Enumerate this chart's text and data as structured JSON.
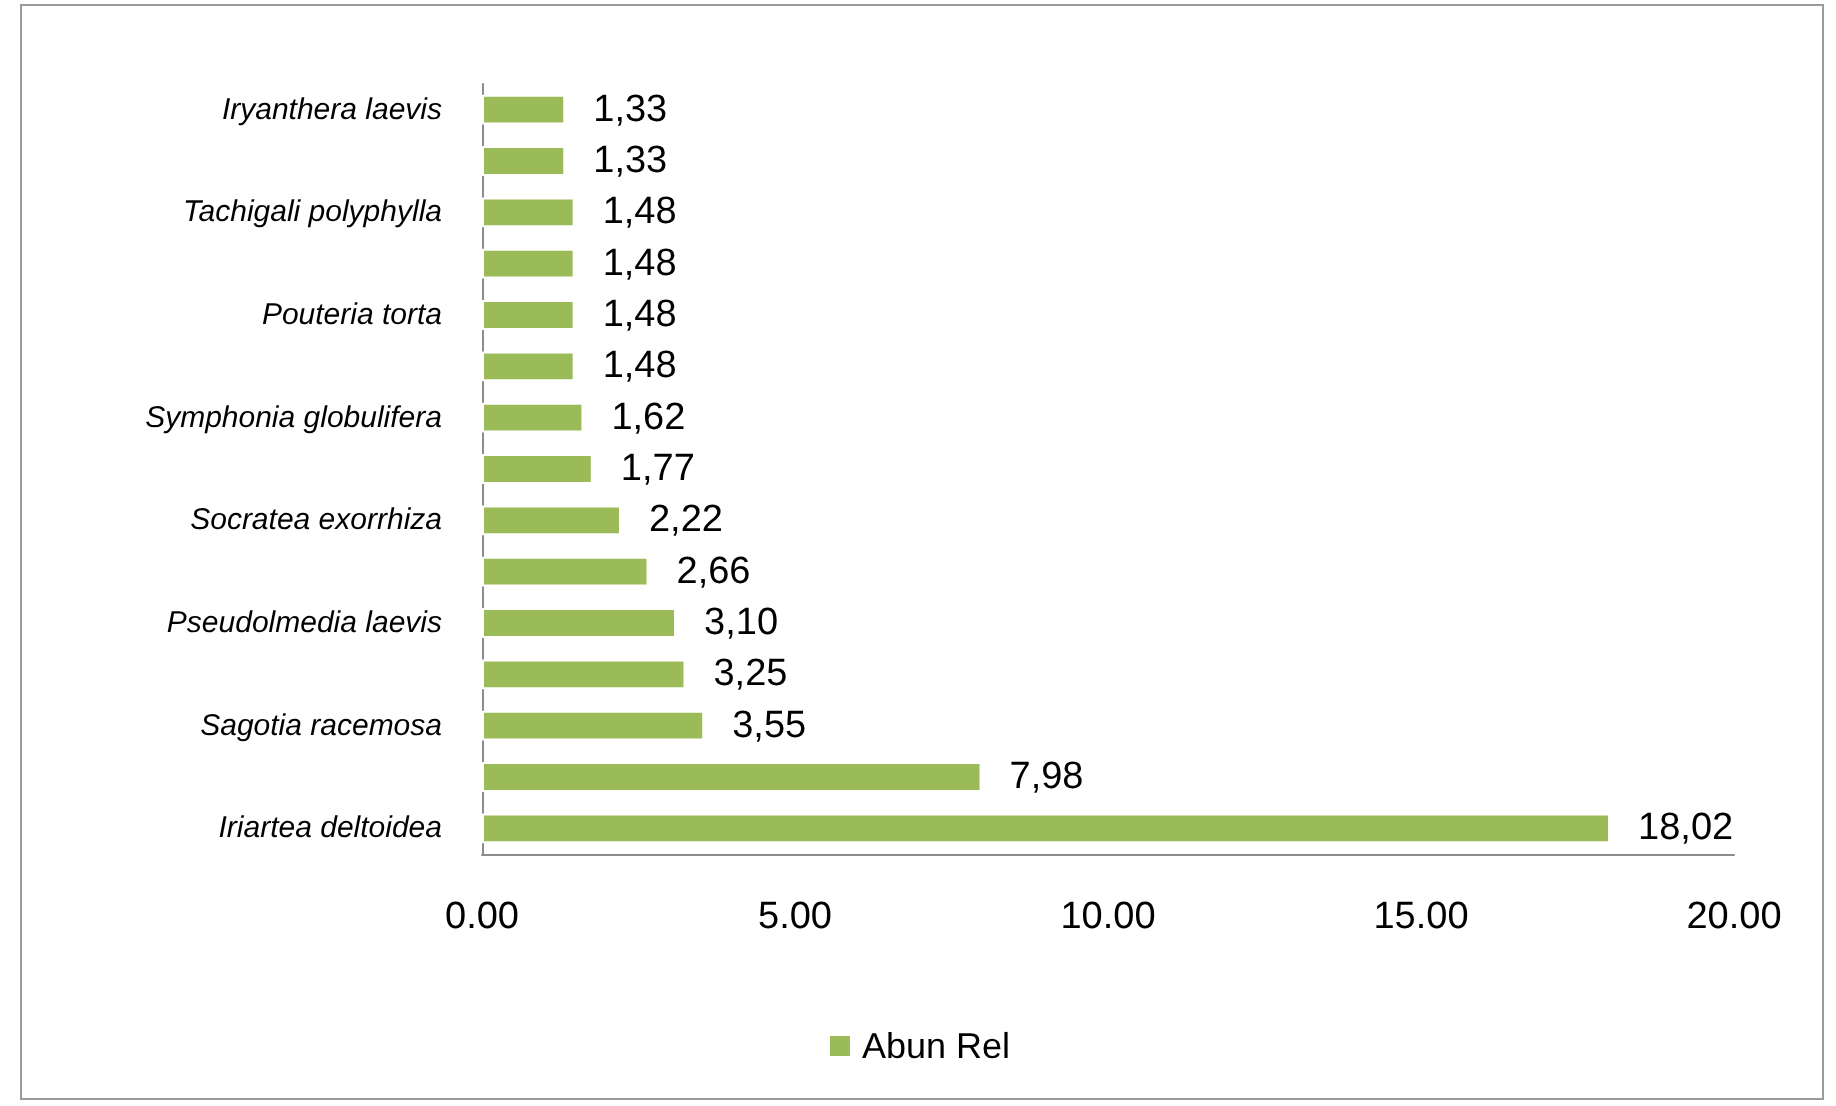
{
  "chart_data": {
    "type": "bar",
    "orientation": "horizontal",
    "categories": [
      "Iryanthera laevis",
      null,
      "Tachigali polyphylla",
      null,
      "Pouteria torta",
      null,
      "Symphonia globulifera",
      null,
      "Socratea exorrhiza",
      null,
      "Pseudolmedia laevis",
      null,
      "Sagotia racemosa",
      null,
      "Iriartea deltoidea"
    ],
    "series": [
      {
        "name": "Abun Rel",
        "color": "#9bbb59",
        "values": [
          1.33,
          1.33,
          1.48,
          1.48,
          1.48,
          1.48,
          1.62,
          1.77,
          2.22,
          2.66,
          3.1,
          3.25,
          3.55,
          7.98,
          18.02
        ],
        "value_labels": [
          "1,33",
          "1,33",
          "1,48",
          "1,48",
          "1,48",
          "1,48",
          "1,62",
          "1,77",
          "2,22",
          "2,66",
          "3,10",
          "3,25",
          "3,55",
          "7,98",
          "18,02"
        ]
      }
    ],
    "xlim": [
      0,
      20
    ],
    "xticks": [
      {
        "value": 0,
        "label": "0.00"
      },
      {
        "value": 5,
        "label": "5.00"
      },
      {
        "value": 10,
        "label": "10.00"
      },
      {
        "value": 15,
        "label": "15.00"
      },
      {
        "value": 20,
        "label": "20.00"
      }
    ],
    "grid": false,
    "legend": "bottom"
  }
}
